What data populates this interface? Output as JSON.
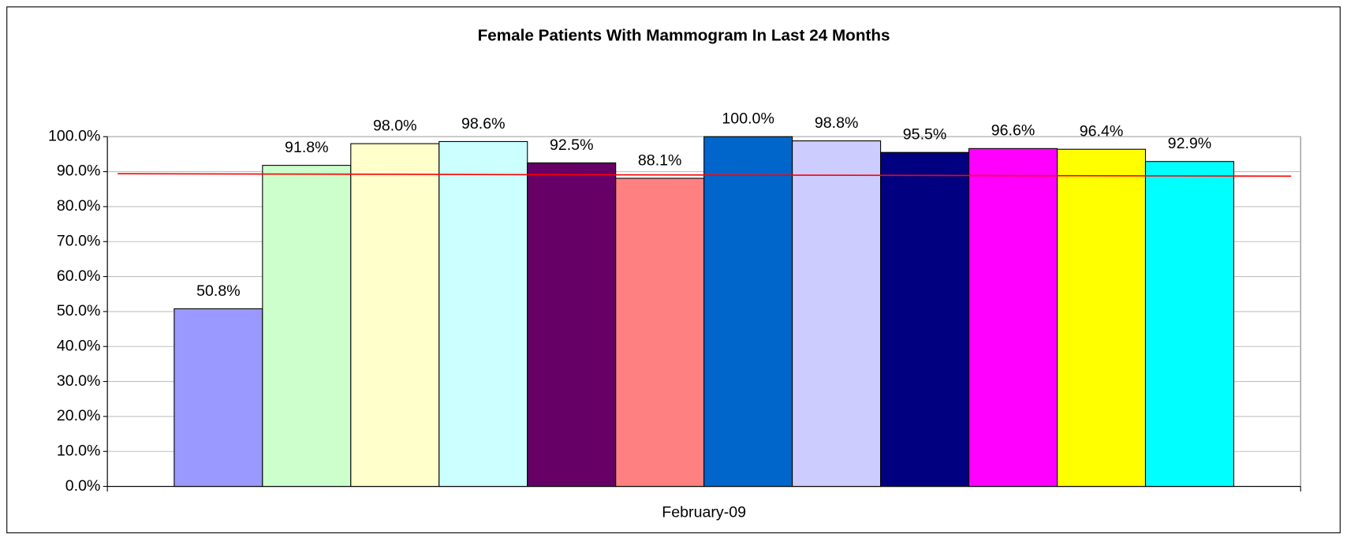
{
  "chart_data": {
    "type": "bar",
    "title": "Female Patients With Mammogram In Last 24 Months",
    "categories": [
      "February-09"
    ],
    "series": [
      {
        "color": "#9999ff",
        "values": [
          50.8
        ],
        "value_labels": [
          "50.8%"
        ]
      },
      {
        "color": "#ccffcc",
        "values": [
          91.8
        ],
        "value_labels": [
          "91.8%"
        ]
      },
      {
        "color": "#ffffcc",
        "values": [
          98.0
        ],
        "value_labels": [
          "98.0%"
        ]
      },
      {
        "color": "#ccffff",
        "values": [
          98.6
        ],
        "value_labels": [
          "98.6%"
        ]
      },
      {
        "color": "#660066",
        "values": [
          92.5
        ],
        "value_labels": [
          "92.5%"
        ]
      },
      {
        "color": "#ff8080",
        "values": [
          88.1
        ],
        "value_labels": [
          "88.1%"
        ]
      },
      {
        "color": "#0066cc",
        "values": [
          100.0
        ],
        "value_labels": [
          "100.0%"
        ]
      },
      {
        "color": "#ccccff",
        "values": [
          98.8
        ],
        "value_labels": [
          "98.8%"
        ]
      },
      {
        "color": "#000080",
        "values": [
          95.5
        ],
        "value_labels": [
          "95.5%"
        ]
      },
      {
        "color": "#ff00ff",
        "values": [
          96.6
        ],
        "value_labels": [
          "96.6%"
        ]
      },
      {
        "color": "#ffff00",
        "values": [
          96.4
        ],
        "value_labels": [
          "96.4%"
        ]
      },
      {
        "color": "#00ffff",
        "values": [
          92.9
        ],
        "value_labels": [
          "92.9%"
        ]
      }
    ],
    "reference_line": {
      "color": "#ff0000",
      "values": [
        89.4,
        88.7
      ]
    },
    "ylim": [
      0,
      100
    ],
    "yticks": [
      {
        "value": 0,
        "label": "0.0%"
      },
      {
        "value": 10,
        "label": "10.0%"
      },
      {
        "value": 20,
        "label": "20.0%"
      },
      {
        "value": 30,
        "label": "30.0%"
      },
      {
        "value": 40,
        "label": "40.0%"
      },
      {
        "value": 50,
        "label": "50.0%"
      },
      {
        "value": 60,
        "label": "60.0%"
      },
      {
        "value": 70,
        "label": "70.0%"
      },
      {
        "value": 80,
        "label": "80.0%"
      },
      {
        "value": 90,
        "label": "90.0%"
      },
      {
        "value": 100,
        "label": "100.0%"
      }
    ],
    "grid": true
  }
}
